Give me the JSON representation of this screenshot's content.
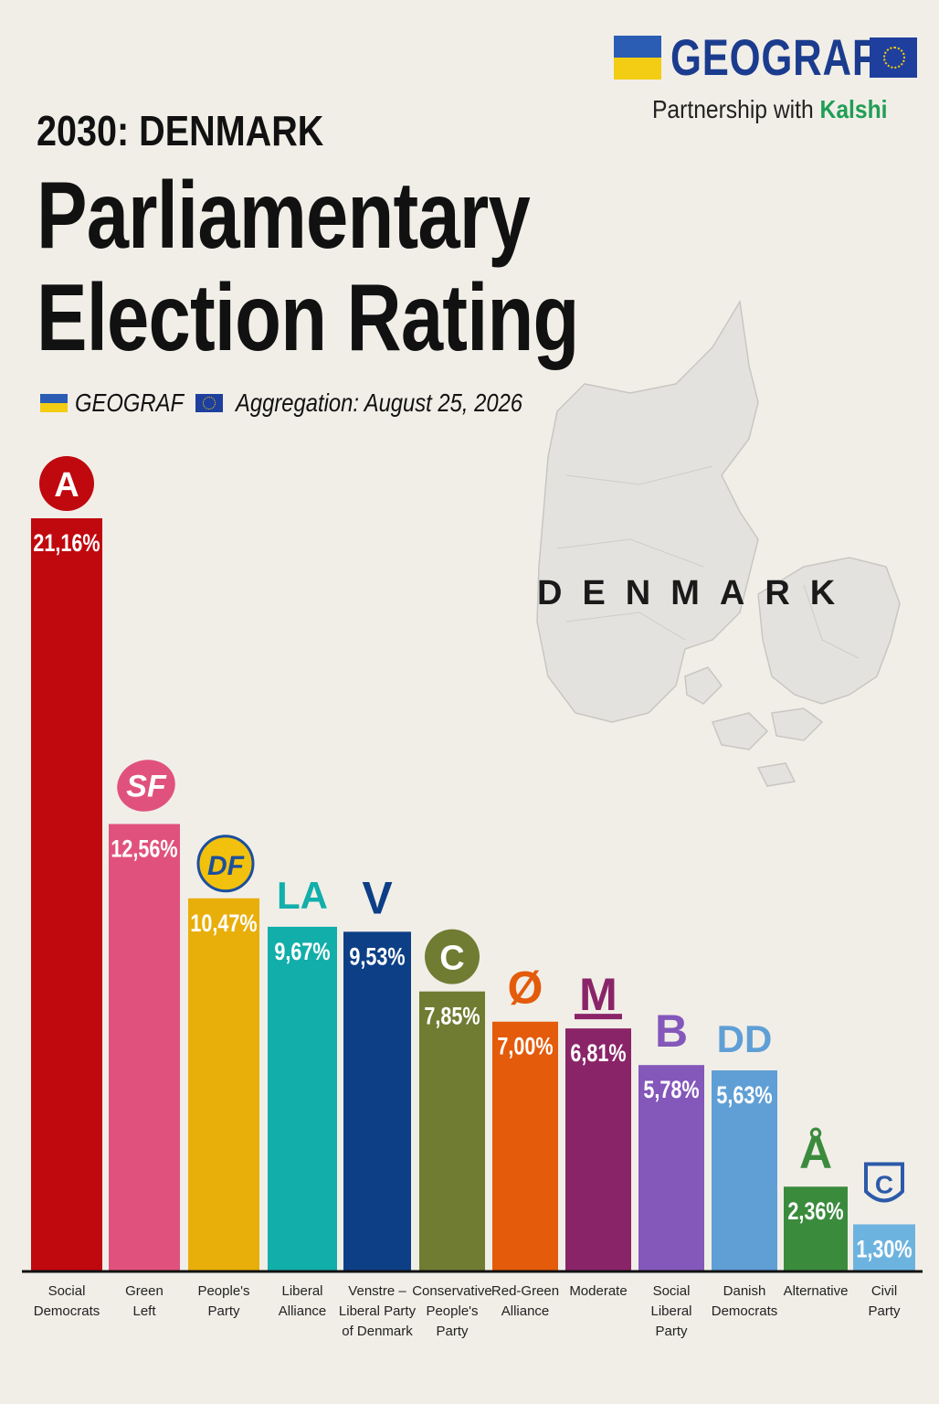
{
  "header": {
    "year_country": "2030: DENMARK",
    "title_line1": "Parliamentary",
    "title_line2": "Election Rating",
    "brand": "GEOGRAF",
    "aggregation": "Aggregation: August 25, 2026",
    "logo_text": "GEOGRAF",
    "partner_prefix": "Partnership with",
    "partner_name": "Kalshi"
  },
  "map": {
    "label": "DENMARK",
    "icon": "denmark-map"
  },
  "colors": {
    "background": "#f1eee8",
    "brand_blue": "#1b3c8e",
    "kalshi_green": "#1f9e55"
  },
  "chart_data": {
    "type": "bar",
    "title": "Parliamentary Election Rating",
    "xlabel": "",
    "ylabel": "",
    "ylim": [
      0,
      21.16
    ],
    "grid": false,
    "legend": "none",
    "categories": [
      "Social Democrats",
      "Green Left",
      "People's Party",
      "Liberal Alliance",
      "Venstre – Liberal Party of Denmark",
      "Conservative People's Party",
      "Red-Green Alliance",
      "Moderate",
      "Social Liberal Party",
      "Danish Democrats",
      "Alternative",
      "Civil Party"
    ],
    "values": [
      21.16,
      12.56,
      10.47,
      9.67,
      9.53,
      7.85,
      7.0,
      6.81,
      5.78,
      5.63,
      2.36,
      1.3
    ],
    "value_labels": [
      "21,16%",
      "12,56%",
      "10,47%",
      "9,67%",
      "9,53%",
      "7,85%",
      "7,00%",
      "6,81%",
      "5,78%",
      "5,63%",
      "2,36%",
      "1,30%"
    ],
    "label_lines": [
      [
        "Social",
        "Democrats"
      ],
      [
        "Green",
        "Left"
      ],
      [
        "People's",
        "Party"
      ],
      [
        "Liberal",
        "Alliance"
      ],
      [
        "Venstre –",
        "Liberal Party",
        "of Denmark"
      ],
      [
        "Conservative",
        "People's",
        "Party"
      ],
      [
        "Red-Green",
        "Alliance"
      ],
      [
        "Moderate"
      ],
      [
        "Social",
        "Liberal",
        "Party"
      ],
      [
        "Danish",
        "Democrats"
      ],
      [
        "Alternative"
      ],
      [
        "Civil",
        "Party"
      ]
    ],
    "party_letters": [
      "A",
      "SF",
      "DF",
      "LA",
      "V",
      "C",
      "Ø",
      "M",
      "B",
      "DD",
      "Å",
      "C"
    ],
    "colors": [
      "#c0080f",
      "#e0527d",
      "#e8ae0a",
      "#12aeaa",
      "#0d3f86",
      "#6f7c32",
      "#e35b0b",
      "#8a2468",
      "#8457ba",
      "#5f9fd6",
      "#3b8b3d",
      "#6db3df"
    ]
  }
}
